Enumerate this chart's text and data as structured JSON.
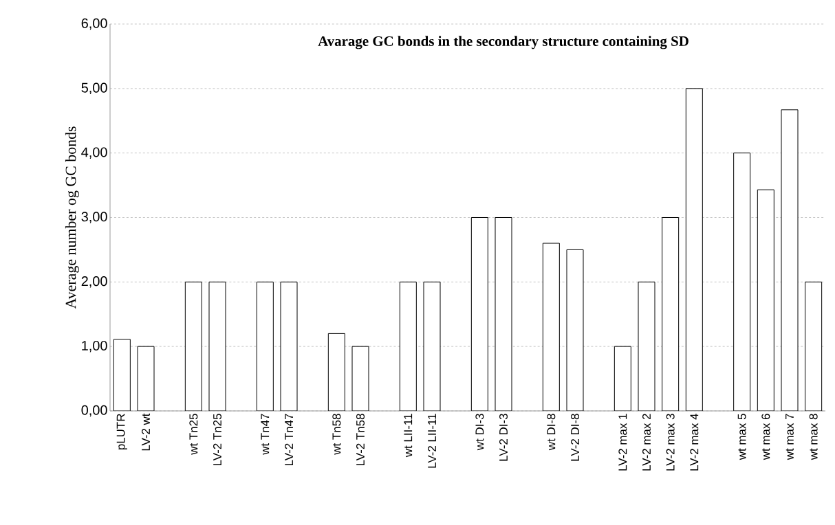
{
  "chart_data": {
    "type": "bar",
    "title": "Avarage GC bonds in the secondary structure containing SD",
    "ylabel": "Average number og GC bonds",
    "categories": [
      "pLUTR",
      "LV-2 wt",
      null,
      "wt Tn25",
      "LV-2 Tn25",
      null,
      "wt Tn47",
      "LV-2 Tn47",
      null,
      "wt Tn58",
      "LV-2 Tn58",
      null,
      "wt LII-11",
      "LV-2 LII-11",
      null,
      "wt DI-3",
      "LV-2 DI-3",
      null,
      "wt DI-8",
      "LV-2 DI-8",
      null,
      "LV-2 max 1",
      "LV-2 max 2",
      "LV-2 max 3",
      "LV-2 max 4",
      null,
      "wt max 5",
      "wt max 6",
      "wt max 7",
      "wt max 8"
    ],
    "values": [
      1.11,
      1.0,
      null,
      2.0,
      2.0,
      null,
      2.0,
      2.0,
      null,
      1.2,
      1.0,
      null,
      2.0,
      2.0,
      null,
      3.0,
      3.0,
      null,
      2.6,
      2.5,
      null,
      1.0,
      2.0,
      3.0,
      5.0,
      null,
      4.0,
      3.43,
      4.67,
      2.0
    ],
    "color": "#ffffff",
    "ylim": [
      0,
      6
    ],
    "yticks": [
      {
        "value": 0,
        "label": "0,00"
      },
      {
        "value": 1,
        "label": "1,00"
      },
      {
        "value": 2,
        "label": "2,00"
      },
      {
        "value": 3,
        "label": "3,00"
      },
      {
        "value": 4,
        "label": "4,00"
      },
      {
        "value": 5,
        "label": "5,00"
      },
      {
        "value": 6,
        "label": "6,00"
      }
    ],
    "grid": "y"
  }
}
